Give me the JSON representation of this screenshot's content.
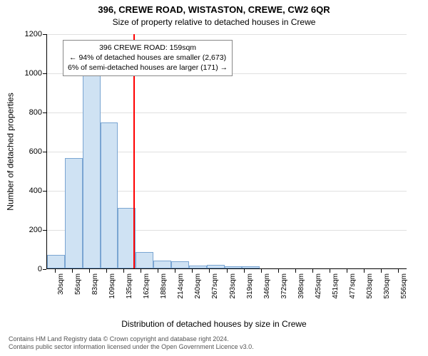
{
  "title_main": "396, CREWE ROAD, WISTASTON, CREWE, CW2 6QR",
  "title_sub": "Size of property relative to detached houses in Crewe",
  "y_label": "Number of detached properties",
  "x_label": "Distribution of detached houses by size in Crewe",
  "chart": {
    "type": "histogram",
    "ylim": [
      0,
      1200
    ],
    "yticks": [
      0,
      200,
      400,
      600,
      800,
      1000,
      1200
    ],
    "bars": [
      {
        "label": "30sqm",
        "value": 70
      },
      {
        "label": "56sqm",
        "value": 565
      },
      {
        "label": "83sqm",
        "value": 1000
      },
      {
        "label": "109sqm",
        "value": 745
      },
      {
        "label": "135sqm",
        "value": 310
      },
      {
        "label": "162sqm",
        "value": 85
      },
      {
        "label": "188sqm",
        "value": 40
      },
      {
        "label": "214sqm",
        "value": 35
      },
      {
        "label": "240sqm",
        "value": 15
      },
      {
        "label": "267sqm",
        "value": 18
      },
      {
        "label": "293sqm",
        "value": 10
      },
      {
        "label": "319sqm",
        "value": 12
      },
      {
        "label": "346sqm",
        "value": 0
      },
      {
        "label": "372sqm",
        "value": 0
      },
      {
        "label": "398sqm",
        "value": 0
      },
      {
        "label": "425sqm",
        "value": 0
      },
      {
        "label": "451sqm",
        "value": 0
      },
      {
        "label": "477sqm",
        "value": 0
      },
      {
        "label": "503sqm",
        "value": 0
      },
      {
        "label": "530sqm",
        "value": 0
      },
      {
        "label": "556sqm",
        "value": 0
      }
    ],
    "bar_fill": "#cfe2f3",
    "bar_border": "#7aa5d2",
    "grid_color": "#e0e0e0",
    "refline_value": 159,
    "refline_color": "#ff0000",
    "x_min": 30,
    "x_max": 569
  },
  "annotation": {
    "line1": "396 CREWE ROAD: 159sqm",
    "line2": "← 94% of detached houses are smaller (2,673)",
    "line3": "6% of semi-detached houses are larger (171) →"
  },
  "footer": {
    "line1": "Contains HM Land Registry data © Crown copyright and database right 2024.",
    "line2": "Contains public sector information licensed under the Open Government Licence v3.0."
  }
}
